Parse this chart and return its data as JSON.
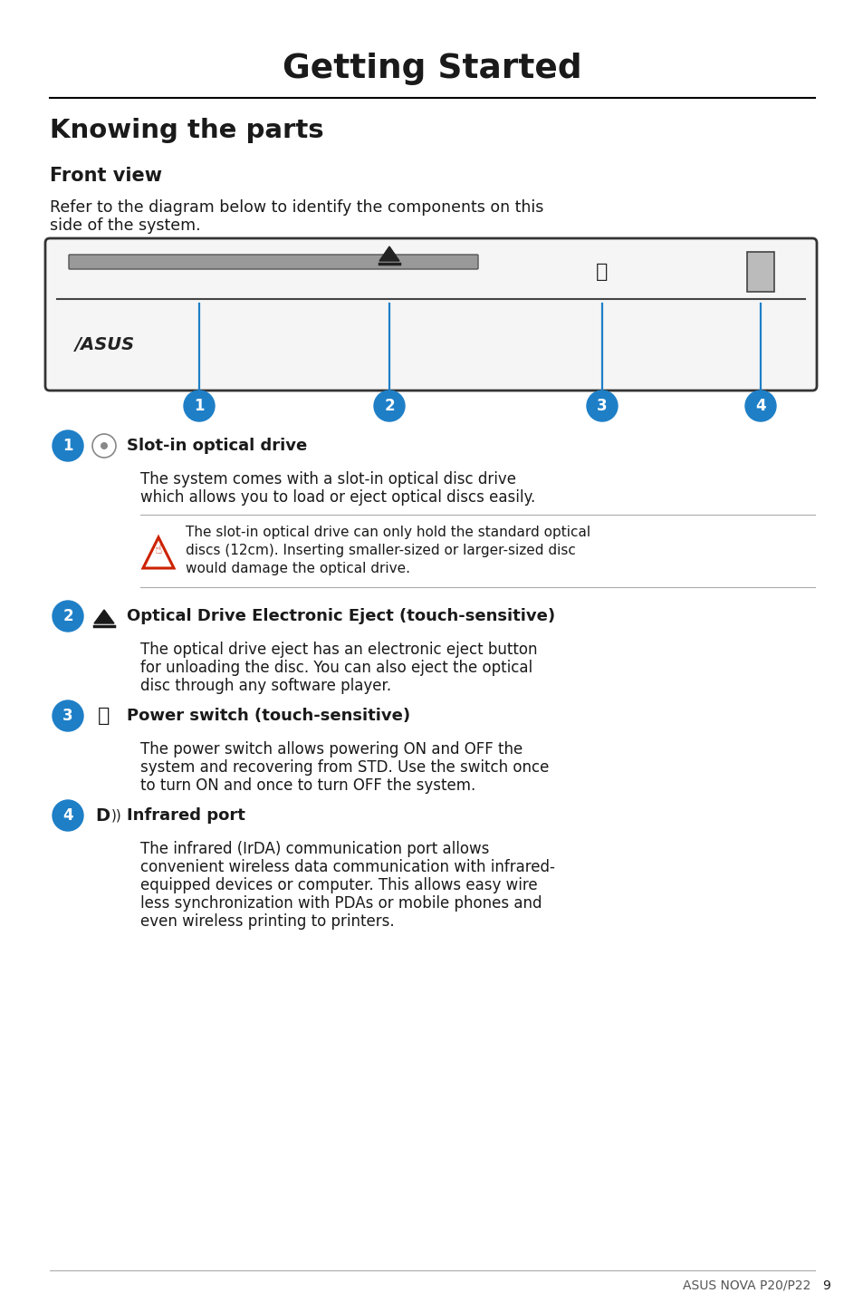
{
  "page_bg": "#ffffff",
  "title": "Getting Started",
  "section_title": "Knowing the parts",
  "subsection_title": "Front view",
  "intro_line1": "Refer to the diagram below to identify the components on this",
  "intro_line2": "side of the system.",
  "blue_color": "#1e7fc7",
  "items": [
    {
      "num": "1",
      "icon": "disc",
      "label": "Slot-in optical drive",
      "body_lines": [
        "The system comes with a slot-in optical disc drive",
        "which allows you to load or eject optical discs easily."
      ],
      "warning_lines": [
        "The slot-in optical drive can only hold the standard optical",
        "discs (12cm). Inserting smaller-sized or larger-sized disc",
        "would damage the optical drive."
      ]
    },
    {
      "num": "2",
      "icon": "eject",
      "label": "Optical Drive Electronic Eject (touch-sensitive)",
      "body_lines": [
        "The optical drive eject has an electronic eject button",
        "for unloading the disc. You can also eject the optical",
        "disc through any software player."
      ],
      "warning_lines": null
    },
    {
      "num": "3",
      "icon": "power",
      "label": "Power switch (touch-sensitive)",
      "body_lines": [
        "The power switch allows powering ON and OFF the",
        "system and recovering from STD. Use the switch once",
        "to turn ON and once to turn OFF the system."
      ],
      "warning_lines": null
    },
    {
      "num": "4",
      "icon": "ir",
      "label": "Infrared port",
      "body_lines": [
        "The infrared (IrDA) communication port allows",
        "convenient wireless data communication with infrared-",
        "equipped devices or computer. This allows easy wire",
        "less synchronization with PDAs or mobile phones and",
        "even wireless printing to printers."
      ],
      "warning_lines": null
    }
  ],
  "footer_label": "ASUS NOVA P20/P22",
  "footer_page": "9"
}
